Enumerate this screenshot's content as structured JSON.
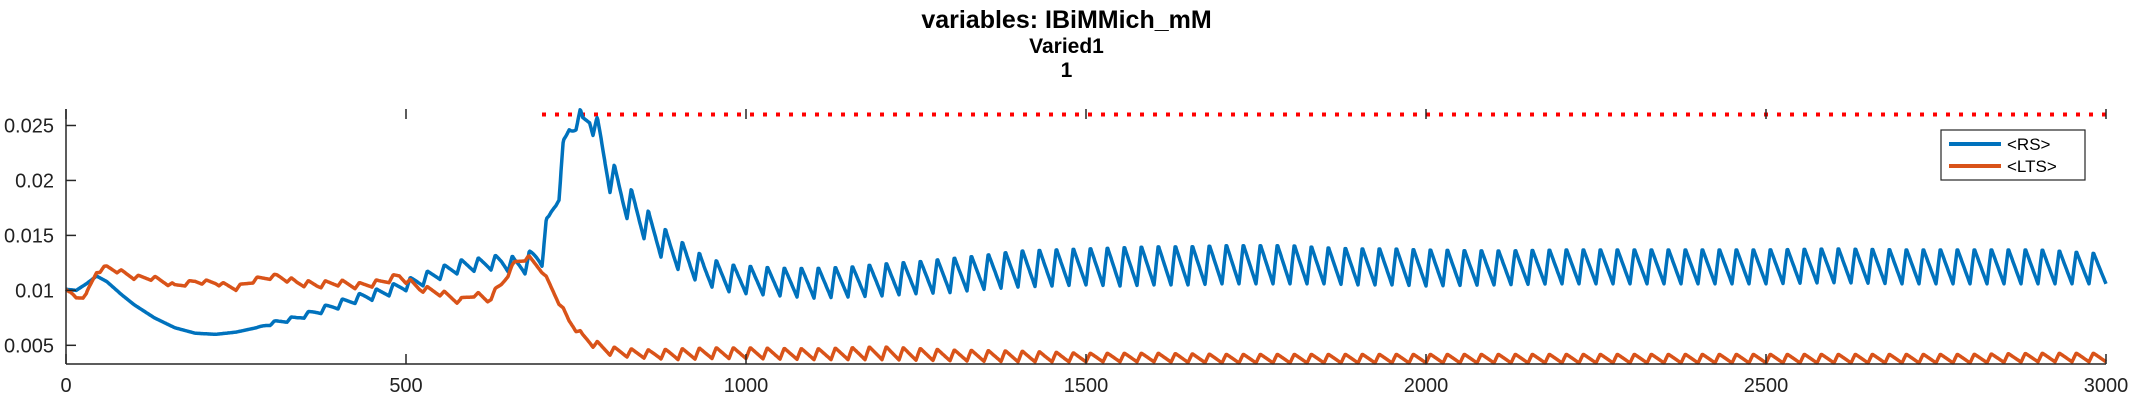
{
  "chart_data": {
    "type": "line",
    "title": "variables: IBiMMich_mM",
    "subtitle_lines": [
      "Varied1",
      "1"
    ],
    "xlim": [
      0,
      3000
    ],
    "ylim": [
      0.0033,
      0.0265
    ],
    "x_ticks": [
      0,
      500,
      1000,
      1500,
      2000,
      2500,
      3000
    ],
    "x_tick_labels": [
      "0",
      "500",
      "1000",
      "1500",
      "2000",
      "2500",
      "3000"
    ],
    "y_ticks": [
      0.005,
      0.01,
      0.015,
      0.02,
      0.025
    ],
    "y_tick_labels": [
      "0.005",
      "0.01",
      "0.015",
      "0.02",
      "0.025"
    ],
    "reference_line": {
      "y": 0.026,
      "x_start": 700,
      "x_end": 3000,
      "style": "dotted",
      "color": "#ff0000"
    },
    "legend": {
      "placement": "top-right",
      "entries": [
        "<RS>",
        "<LTS>"
      ]
    },
    "series": [
      {
        "name": "<RS>",
        "color": "#0072bd",
        "x": [
          0,
          15,
          30,
          45,
          60,
          80,
          100,
          130,
          160,
          190,
          220,
          250,
          280,
          310,
          340,
          370,
          400,
          430,
          460,
          490,
          520,
          550,
          580,
          610,
          640,
          660,
          680,
          700,
          710,
          720,
          730,
          740,
          750,
          760,
          770,
          780,
          790,
          800,
          820,
          840,
          860,
          880,
          900,
          920,
          940,
          960,
          980,
          1000,
          1050,
          1100,
          1150,
          1200,
          1250,
          1300,
          1350,
          1400,
          1450,
          1500,
          1550,
          1600,
          1650,
          1700,
          1750,
          1800,
          1850,
          1900,
          1950,
          2000,
          2100,
          2200,
          2300,
          2400,
          2500,
          2600,
          2700,
          2800,
          2900,
          3000
        ],
        "values": [
          0.0101,
          0.01,
          0.0106,
          0.0113,
          0.0108,
          0.0097,
          0.0087,
          0.0075,
          0.0066,
          0.0061,
          0.006,
          0.0062,
          0.0066,
          0.0071,
          0.0075,
          0.0081,
          0.0087,
          0.0093,
          0.0097,
          0.0103,
          0.0109,
          0.0116,
          0.0122,
          0.0124,
          0.0126,
          0.0123,
          0.0125,
          0.0136,
          0.0158,
          0.0185,
          0.0215,
          0.0245,
          0.0258,
          0.025,
          0.0258,
          0.0248,
          0.0225,
          0.0205,
          0.0185,
          0.017,
          0.0155,
          0.0142,
          0.0133,
          0.0125,
          0.0118,
          0.0114,
          0.0111,
          0.011,
          0.0108,
          0.0107,
          0.0108,
          0.011,
          0.0112,
          0.0114,
          0.0117,
          0.012,
          0.0121,
          0.0122,
          0.0122,
          0.0123,
          0.0123,
          0.0124,
          0.0124,
          0.0124,
          0.0123,
          0.0122,
          0.0122,
          0.0121,
          0.0121,
          0.0122,
          0.0122,
          0.0122,
          0.0122,
          0.0123,
          0.0122,
          0.0122,
          0.0122,
          0.012
        ],
        "oscillation_amplitude": [
          0,
          0,
          0,
          0,
          0,
          0,
          0,
          0,
          0,
          0,
          0,
          0,
          0,
          0.0002,
          0.0002,
          0.0003,
          0.0004,
          0.0004,
          0.0005,
          0.0005,
          0.0006,
          0.0006,
          0.0006,
          0.0006,
          0.0007,
          0.0008,
          0.001,
          0.0014,
          0.0016,
          0.0018,
          0.0018,
          0.0016,
          0.0012,
          0.0012,
          0.0012,
          0.0012,
          0.0016,
          0.0016,
          0.0016,
          0.0016,
          0.0015,
          0.0015,
          0.0014,
          0.0014,
          0.0013,
          0.0013,
          0.0013,
          0.0013,
          0.0013,
          0.0014,
          0.0014,
          0.0015,
          0.0015,
          0.0016,
          0.0016,
          0.0017,
          0.0017,
          0.0017,
          0.0018,
          0.0018,
          0.0018,
          0.0018,
          0.0018,
          0.0018,
          0.0017,
          0.0017,
          0.0017,
          0.0017,
          0.0016,
          0.0016,
          0.0016,
          0.0016,
          0.0016,
          0.0016,
          0.0016,
          0.0016,
          0.0016,
          0.0014
        ]
      },
      {
        "name": "<LTS>",
        "color": "#d95319",
        "x": [
          0,
          15,
          30,
          45,
          60,
          80,
          100,
          130,
          160,
          190,
          220,
          250,
          280,
          310,
          340,
          370,
          400,
          430,
          460,
          490,
          520,
          550,
          580,
          600,
          620,
          640,
          660,
          680,
          700,
          720,
          740,
          760,
          780,
          800,
          830,
          860,
          900,
          950,
          1000,
          1100,
          1200,
          1300,
          1400,
          1500,
          1600,
          1700,
          1800,
          1900,
          2000,
          2100,
          2200,
          2300,
          2400,
          2500,
          2600,
          2700,
          2800,
          2900,
          3000
        ],
        "values": [
          0.0101,
          0.0093,
          0.0096,
          0.0117,
          0.0121,
          0.0117,
          0.0112,
          0.0111,
          0.0104,
          0.0108,
          0.0107,
          0.0102,
          0.011,
          0.0113,
          0.0107,
          0.0105,
          0.0107,
          0.0104,
          0.0107,
          0.0113,
          0.0102,
          0.0098,
          0.009,
          0.0097,
          0.0091,
          0.0105,
          0.0125,
          0.013,
          0.0118,
          0.0095,
          0.0072,
          0.0058,
          0.005,
          0.0045,
          0.0043,
          0.0042,
          0.0042,
          0.0043,
          0.0043,
          0.0042,
          0.0043,
          0.0041,
          0.004,
          0.0039,
          0.0039,
          0.0038,
          0.0038,
          0.0038,
          0.0038,
          0.0038,
          0.0038,
          0.0038,
          0.0038,
          0.0038,
          0.0038,
          0.0038,
          0.0038,
          0.0039,
          0.0039
        ],
        "oscillation_amplitude": [
          0,
          0.0002,
          0.0002,
          0.0002,
          0.0002,
          0.0002,
          0.0002,
          0.0002,
          0.0002,
          0.0002,
          0.0002,
          0.0002,
          0.0002,
          0.0002,
          0.0003,
          0.0003,
          0.0003,
          0.0003,
          0.0003,
          0.0003,
          0.0003,
          0.0003,
          0.0003,
          0.0003,
          0.0003,
          0.0003,
          0.0002,
          0.0002,
          0.0002,
          0.0002,
          0.0002,
          0.0003,
          0.0004,
          0.0004,
          0.0004,
          0.0004,
          0.0005,
          0.0005,
          0.0005,
          0.0005,
          0.0006,
          0.0005,
          0.0005,
          0.0004,
          0.0004,
          0.0004,
          0.0004,
          0.0004,
          0.0004,
          0.0004,
          0.0004,
          0.0004,
          0.0004,
          0.0004,
          0.0004,
          0.0004,
          0.0004,
          0.0004,
          0.0004
        ]
      }
    ]
  }
}
